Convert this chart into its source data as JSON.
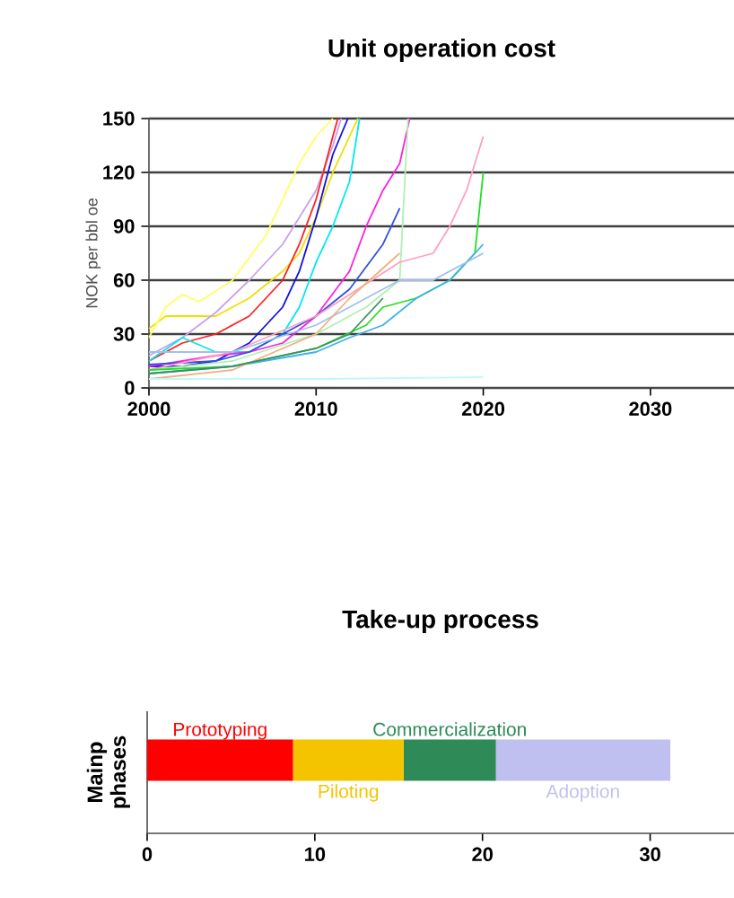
{
  "chart_data": [
    {
      "type": "line",
      "title": "Unit operation cost",
      "ylabel": "NOK per bbl oe",
      "xlim": [
        2000,
        2035
      ],
      "xticks": [
        2000,
        2010,
        2020,
        2030
      ],
      "ylim": [
        0,
        150
      ],
      "yticks": [
        0,
        30,
        60,
        90,
        120,
        150
      ],
      "grid": "y",
      "series": [
        {
          "color": "#f0e000",
          "x": [
            2000,
            2001,
            2002,
            2004,
            2006,
            2008,
            2009,
            2010,
            2011,
            2012.5
          ],
          "values": [
            33,
            40,
            40,
            40,
            50,
            65,
            75,
            95,
            120,
            150
          ]
        },
        {
          "color": "#ffff60",
          "x": [
            2000,
            2001,
            2002,
            2003,
            2005,
            2007,
            2009,
            2010,
            2011
          ],
          "values": [
            28,
            45,
            52,
            48,
            60,
            85,
            125,
            140,
            150
          ]
        },
        {
          "color": "#c8a0f0",
          "x": [
            2000,
            2002,
            2004,
            2006,
            2008,
            2010,
            2011,
            2011.5
          ],
          "values": [
            18,
            28,
            42,
            60,
            80,
            110,
            135,
            150
          ]
        },
        {
          "color": "#ff2020",
          "x": [
            2000,
            2002,
            2004,
            2006,
            2008,
            2009,
            2010,
            2011,
            2011.3
          ],
          "values": [
            15,
            25,
            30,
            40,
            60,
            80,
            105,
            140,
            150
          ]
        },
        {
          "color": "#1010e0",
          "x": [
            2000,
            2002,
            2004,
            2006,
            2008,
            2009,
            2010,
            2011,
            2011.9
          ],
          "values": [
            12,
            12,
            15,
            25,
            45,
            65,
            95,
            130,
            150
          ]
        },
        {
          "color": "#00e8f0",
          "x": [
            2000,
            2002,
            2004,
            2006,
            2008,
            2009,
            2010,
            2011,
            2012,
            2012.6
          ],
          "values": [
            15,
            28,
            20,
            20,
            30,
            45,
            70,
            90,
            115,
            150
          ]
        },
        {
          "color": "#ff20e0",
          "x": [
            2000,
            2004,
            2006,
            2008,
            2010,
            2012,
            2013,
            2014,
            2015,
            2015.6
          ],
          "values": [
            12,
            18,
            20,
            25,
            40,
            65,
            90,
            110,
            125,
            150
          ]
        },
        {
          "color": "#3050e0",
          "x": [
            2000,
            2004,
            2006,
            2008,
            2010,
            2012,
            2014,
            2015
          ],
          "values": [
            13,
            15,
            20,
            30,
            40,
            55,
            80,
            100
          ]
        },
        {
          "color": "#b0f0b0",
          "x": [
            2000,
            2005,
            2010,
            2013,
            2015,
            2015.5
          ],
          "values": [
            10,
            15,
            30,
            45,
            60,
            150
          ]
        },
        {
          "color": "#ffa0c0",
          "x": [
            2000,
            2005,
            2010,
            2015,
            2017,
            2018,
            2019,
            2020
          ],
          "values": [
            10,
            20,
            40,
            70,
            75,
            90,
            110,
            140
          ]
        },
        {
          "color": "#20e020",
          "x": [
            2000,
            2005,
            2010,
            2013,
            2014,
            2016,
            2018,
            2019.5,
            2020
          ],
          "values": [
            10,
            12,
            22,
            35,
            45,
            50,
            60,
            75,
            120
          ]
        },
        {
          "color": "#40b0f0",
          "x": [
            2000,
            2005,
            2010,
            2012,
            2014,
            2016,
            2018,
            2020
          ],
          "values": [
            8,
            12,
            20,
            28,
            35,
            50,
            60,
            80
          ]
        },
        {
          "color": "#a0c0f0",
          "x": [
            2000,
            2005,
            2010,
            2015,
            2017,
            2020
          ],
          "values": [
            20,
            20,
            35,
            60,
            60,
            75
          ]
        },
        {
          "color": "#f0b080",
          "x": [
            2000,
            2005,
            2010,
            2012,
            2015
          ],
          "values": [
            5,
            10,
            30,
            50,
            75
          ]
        },
        {
          "color": "#3a9060",
          "x": [
            2000,
            2005,
            2010,
            2012,
            2014
          ],
          "values": [
            8,
            12,
            22,
            30,
            50
          ]
        },
        {
          "color": "#c0f8f8",
          "x": [
            2000,
            2010,
            2020
          ],
          "values": [
            5,
            5,
            6
          ]
        }
      ]
    },
    {
      "type": "bar",
      "title": "Take-up process",
      "ylabel": "Mainp phases",
      "orientation": "horizontal",
      "stacked": true,
      "categories": [
        null
      ],
      "xlim": [
        0,
        35
      ],
      "xticks": [
        0,
        10,
        20,
        30
      ],
      "series": [
        {
          "name": "Prototyping",
          "color": "#ff0000",
          "values": [
            8.7
          ]
        },
        {
          "name": "Piloting",
          "color": "#f5c400",
          "values": [
            6.6
          ]
        },
        {
          "name": "Commercialization",
          "color": "#2e8b57",
          "values": [
            5.5
          ]
        },
        {
          "name": "Adoption",
          "color": "#c0c0f0",
          "values": [
            10.4
          ]
        }
      ]
    }
  ]
}
